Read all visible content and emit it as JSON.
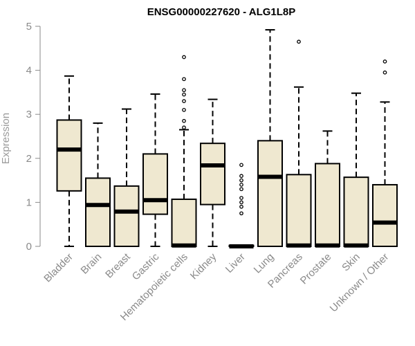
{
  "chart_data": {
    "type": "box",
    "title": "ENSG00000227620 - ALG1L8P",
    "xlabel": "",
    "ylabel": "Expression",
    "ylim": [
      0,
      5
    ],
    "yticks": [
      0,
      1,
      2,
      3,
      4,
      5
    ],
    "grid": false,
    "legend": "none",
    "box_fill": "#efe8d0",
    "box_stroke": "#000000",
    "categories": [
      "Bladder",
      "Brain",
      "Breast",
      "Gastric",
      "Hematopoietic cells",
      "Kidney",
      "Liver",
      "Lung",
      "Pancreas",
      "Prostate",
      "Skin",
      "Unknown / Other"
    ],
    "boxes": [
      {
        "category": "Bladder",
        "whisker_low": 0.0,
        "q1": 1.26,
        "median": 2.2,
        "q3": 2.87,
        "whisker_high": 3.87,
        "outliers": []
      },
      {
        "category": "Brain",
        "whisker_low": 0.0,
        "q1": 0.0,
        "median": 0.94,
        "q3": 1.55,
        "whisker_high": 2.8,
        "outliers": []
      },
      {
        "category": "Breast",
        "whisker_low": 0.0,
        "q1": 0.0,
        "median": 0.79,
        "q3": 1.37,
        "whisker_high": 3.12,
        "outliers": []
      },
      {
        "category": "Gastric",
        "whisker_low": 0.0,
        "q1": 0.73,
        "median": 1.05,
        "q3": 2.1,
        "whisker_high": 3.46,
        "outliers": []
      },
      {
        "category": "Hematopoietic cells",
        "whisker_low": 0.0,
        "q1": 0.0,
        "median": 0.02,
        "q3": 1.07,
        "whisker_high": 2.65,
        "outliers": [
          2.7,
          2.85,
          3.1,
          3.3,
          3.45,
          3.55,
          3.8,
          4.3
        ]
      },
      {
        "category": "Kidney",
        "whisker_low": 0.0,
        "q1": 0.95,
        "median": 1.84,
        "q3": 2.34,
        "whisker_high": 3.34,
        "outliers": []
      },
      {
        "category": "Liver",
        "whisker_low": 0.0,
        "q1": 0.0,
        "median": 0.0,
        "q3": 0.02,
        "whisker_high": 0.02,
        "outliers": [
          0.75,
          0.9,
          1.0,
          1.1,
          1.3,
          1.4,
          1.5,
          1.6,
          1.85
        ]
      },
      {
        "category": "Lung",
        "whisker_low": 0.0,
        "q1": 0.0,
        "median": 1.58,
        "q3": 2.4,
        "whisker_high": 4.92,
        "outliers": []
      },
      {
        "category": "Pancreas",
        "whisker_low": 0.0,
        "q1": 0.0,
        "median": 0.02,
        "q3": 1.63,
        "whisker_high": 3.62,
        "outliers": [
          4.65
        ]
      },
      {
        "category": "Prostate",
        "whisker_low": 0.0,
        "q1": 0.0,
        "median": 0.02,
        "q3": 1.88,
        "whisker_high": 2.62,
        "outliers": []
      },
      {
        "category": "Skin",
        "whisker_low": 0.0,
        "q1": 0.0,
        "median": 0.02,
        "q3": 1.57,
        "whisker_high": 3.48,
        "outliers": []
      },
      {
        "category": "Unknown / Other",
        "whisker_low": 0.0,
        "q1": 0.0,
        "median": 0.54,
        "q3": 1.4,
        "whisker_high": 3.28,
        "outliers": [
          3.95,
          4.2
        ]
      }
    ]
  }
}
